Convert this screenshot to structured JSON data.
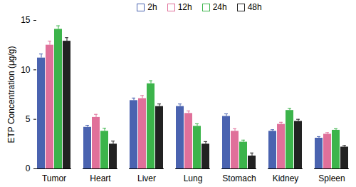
{
  "chart_data": {
    "type": "bar",
    "ylabel": "ETP Concentration (μg/g)",
    "categories": [
      "Tumor",
      "Heart",
      "Liver",
      "Lung",
      "Stomach",
      "Kidney",
      "Spleen"
    ],
    "series": [
      {
        "name": "2h",
        "color": "#4a63b0",
        "values": [
          11.2,
          4.2,
          6.9,
          6.3,
          5.3,
          3.8,
          3.1
        ],
        "errors": [
          0.4,
          0.2,
          0.25,
          0.25,
          0.25,
          0.15,
          0.15
        ]
      },
      {
        "name": "12h",
        "color": "#e0709a",
        "values": [
          12.5,
          5.2,
          7.1,
          5.6,
          3.8,
          4.5,
          3.5
        ],
        "errors": [
          0.4,
          0.3,
          0.3,
          0.25,
          0.25,
          0.2,
          0.15
        ]
      },
      {
        "name": "24h",
        "color": "#3cb44b",
        "values": [
          14.1,
          3.8,
          8.6,
          4.3,
          2.7,
          5.9,
          3.9
        ],
        "errors": [
          0.35,
          0.3,
          0.3,
          0.25,
          0.2,
          0.2,
          0.15
        ]
      },
      {
        "name": "48h",
        "color": "#222222",
        "values": [
          12.9,
          2.5,
          6.3,
          2.5,
          1.3,
          4.8,
          2.2
        ],
        "errors": [
          0.35,
          0.3,
          0.25,
          0.25,
          0.3,
          0.2,
          0.15
        ]
      }
    ],
    "ylim": [
      0,
      15
    ],
    "yticks": [
      0,
      5,
      10,
      15
    ],
    "legend": "top"
  }
}
